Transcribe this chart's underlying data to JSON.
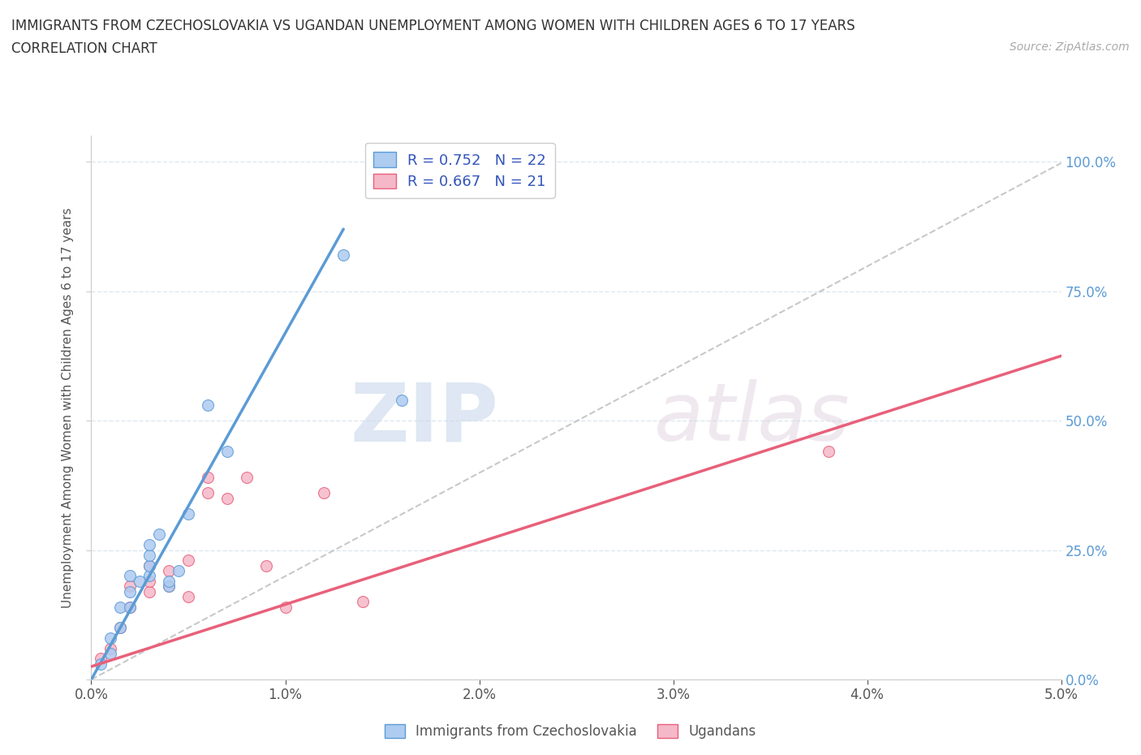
{
  "title": "IMMIGRANTS FROM CZECHOSLOVAKIA VS UGANDAN UNEMPLOYMENT AMONG WOMEN WITH CHILDREN AGES 6 TO 17 YEARS",
  "subtitle": "CORRELATION CHART",
  "source": "Source: ZipAtlas.com",
  "ylabel": "Unemployment Among Women with Children Ages 6 to 17 years",
  "x_min": 0.0,
  "x_max": 0.05,
  "y_min": 0.0,
  "y_max": 1.05,
  "x_ticks": [
    0.0,
    0.01,
    0.02,
    0.03,
    0.04,
    0.05
  ],
  "x_tick_labels": [
    "0.0%",
    "1.0%",
    "2.0%",
    "3.0%",
    "4.0%",
    "5.0%"
  ],
  "y_ticks": [
    0.0,
    0.25,
    0.5,
    0.75,
    1.0
  ],
  "y_tick_labels": [
    "0.0%",
    "25.0%",
    "50.0%",
    "75.0%",
    "100.0%"
  ],
  "legend_label1": "Immigrants from Czechoslovakia",
  "legend_label2": "Ugandans",
  "r1": 0.752,
  "n1": 22,
  "r2": 0.667,
  "n2": 21,
  "color1": "#aecbf0",
  "color2": "#f5b8c8",
  "line_color1": "#5b9bd5",
  "line_color2": "#e8607a",
  "trendline_color": "#bbbbbb",
  "scatter1_x": [
    0.0005,
    0.001,
    0.001,
    0.0015,
    0.0015,
    0.002,
    0.002,
    0.002,
    0.0025,
    0.003,
    0.003,
    0.003,
    0.003,
    0.0035,
    0.004,
    0.004,
    0.0045,
    0.005,
    0.006,
    0.007,
    0.013,
    0.016
  ],
  "scatter1_y": [
    0.03,
    0.05,
    0.08,
    0.1,
    0.14,
    0.14,
    0.17,
    0.2,
    0.19,
    0.2,
    0.22,
    0.24,
    0.26,
    0.28,
    0.18,
    0.19,
    0.21,
    0.32,
    0.53,
    0.44,
    0.82,
    0.54
  ],
  "scatter2_x": [
    0.0005,
    0.001,
    0.0015,
    0.002,
    0.002,
    0.003,
    0.003,
    0.003,
    0.004,
    0.004,
    0.005,
    0.005,
    0.006,
    0.006,
    0.007,
    0.008,
    0.009,
    0.01,
    0.012,
    0.014,
    0.038
  ],
  "scatter2_y": [
    0.04,
    0.06,
    0.1,
    0.14,
    0.18,
    0.17,
    0.19,
    0.22,
    0.18,
    0.21,
    0.16,
    0.23,
    0.36,
    0.39,
    0.35,
    0.39,
    0.22,
    0.14,
    0.36,
    0.15,
    0.44
  ],
  "trend1_x0": 0.0,
  "trend1_y0": 0.0,
  "trend1_x1": 0.013,
  "trend1_y1": 0.87,
  "trend2_x0": 0.0,
  "trend2_y0": 0.025,
  "trend2_x1": 0.05,
  "trend2_y1": 0.625,
  "watermark_zip": "ZIP",
  "watermark_atlas": "atlas",
  "background_color": "#ffffff",
  "grid_color": "#dde8f0"
}
